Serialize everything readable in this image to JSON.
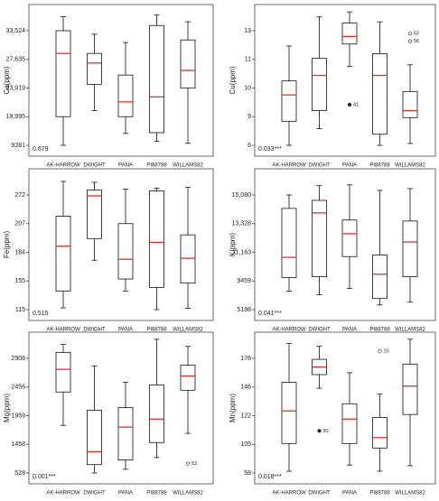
{
  "chart_data": [
    {
      "type": "box",
      "ylabel": "Ca(ppm)",
      "annotation": "0.679",
      "categories": [
        "AK-HARROW",
        "DWIGHT",
        "PANA",
        "PI88788",
        "WILLAMS82"
      ],
      "boxes": [
        {
          "min": 9281,
          "q1": 19995,
          "median": 28850,
          "q3": 33524,
          "max": 36300
        },
        {
          "min": 20830,
          "q1": 24400,
          "median": 27160,
          "q3": 28850,
          "max": 32800
        },
        {
          "min": 13715,
          "q1": 19995,
          "median": 22020,
          "q3": 25600,
          "max": 31100
        },
        {
          "min": 10760,
          "q1": 14020,
          "median": 22700,
          "q3": 34560,
          "max": 36700
        },
        {
          "min": 10020,
          "q1": 23919,
          "median": 26200,
          "q3": 31620,
          "max": 35300
        }
      ],
      "outliers": [],
      "ylim": [
        5357,
        38737
      ],
      "yticks": [
        9281,
        {
          "value": 19995,
          "label": "19,995"
        },
        {
          "value": 23919,
          "label": "23,919"
        },
        {
          "value": 27635,
          "label": "27,635"
        },
        {
          "value": 33524,
          "label": "33,524"
        }
      ]
    },
    {
      "type": "box",
      "ylabel": "Cu(ppm)",
      "annotation": "0.033***",
      "categories": [
        "AK-HARROW",
        "DWIGHT",
        "PANA",
        "PI88788",
        "WILLAMS82"
      ],
      "boxes": [
        {
          "min": 6,
          "q1": 8.52,
          "median": 9.76,
          "q3": 10.25,
          "max": 11.93
        },
        {
          "min": 7.74,
          "q1": 9.21,
          "median": 10.44,
          "q3": 11.07,
          "max": 13.93
        },
        {
          "min": 10.75,
          "q1": 12.07,
          "median": 12.6,
          "q3": 13.53,
          "max": 14.27
        },
        {
          "min": 6,
          "q1": 7.16,
          "median": 10.44,
          "q3": 11.4,
          "max": 13.6
        },
        {
          "min": 6.19,
          "q1": 8.9,
          "median": 9.21,
          "q3": 9.88,
          "max": 10.81
        }
      ],
      "outliers": [
        {
          "category": "PANA",
          "value": 9.42,
          "label": "41"
        },
        {
          "category": "WILLAMS82",
          "value": 12.8,
          "label": "52"
        },
        {
          "category": "WILLAMS82",
          "value": 12.27,
          "label": "56"
        }
      ],
      "ylim": [
        4.9,
        14.77
      ],
      "yticks": [
        6,
        9,
        10,
        11,
        13
      ]
    },
    {
      "type": "box",
      "ylabel": "Fe(ppm)",
      "annotation": "0.515",
      "categories": [
        "AK-HARROW",
        "DWIGHT",
        "PANA",
        "PI88788",
        "WILLAMS82"
      ],
      "boxes": [
        {
          "min": 117.5,
          "q1": 141,
          "median": 189,
          "q3": 224,
          "max": 302
        },
        {
          "min": 176,
          "q1": 195,
          "median": 270,
          "q3": 283,
          "max": 300
        },
        {
          "min": 141,
          "q1": 157,
          "median": 177,
          "q3": 207,
          "max": 285
        },
        {
          "min": 115,
          "q1": 146,
          "median": 192,
          "q3": 281,
          "max": 287
        },
        {
          "min": 117,
          "q1": 152,
          "median": 178,
          "q3": 198,
          "max": 289
        }
      ],
      "outliers": [],
      "ylim": [
        100,
        330
      ],
      "yticks": [
        115,
        155,
        184,
        207,
        272
      ]
    },
    {
      "type": "box",
      "ylabel": "K(ppm)",
      "annotation": "0.041***",
      "categories": [
        "AK-HARROW",
        "DWIGHT",
        "PANA",
        "PI88788",
        "WILLAMS82"
      ],
      "boxes": [
        {
          "min": 7947,
          "q1": 9660,
          "median": 10862,
          "q3": 14259,
          "max": 15080
        },
        {
          "min": 7400,
          "q1": 9710,
          "median": 13985,
          "q3": 14750,
          "max": 15630
        },
        {
          "min": 8360,
          "q1": 10910,
          "median": 12565,
          "q3": 13550,
          "max": 15680
        },
        {
          "min": 5890,
          "q1": 6850,
          "median": 9860,
          "q3": 11010,
          "max": 15350
        },
        {
          "min": 6300,
          "q1": 9710,
          "median": 11950,
          "q3": 13490,
          "max": 15460
        }
      ],
      "outliers": [],
      "ylim": [
        3638,
        16631
      ],
      "yticks": [
        5198,
        9459,
        {
          "value": 11163,
          "label": "11,163"
        },
        {
          "value": 13328,
          "label": "13,328"
        },
        {
          "value": 15080,
          "label": "15,080"
        }
      ]
    },
    {
      "type": "box",
      "ylabel": "Mg(ppm)",
      "annotation": "0.001***",
      "categories": [
        "AK-HARROW",
        "DWIGHT",
        "PANA",
        "PI88788",
        "WILLAMS82"
      ],
      "boxes": [
        {
          "min": 1790,
          "q1": 2370,
          "median": 2735,
          "q3": 3000,
          "max": 3120
        },
        {
          "min": 528,
          "q1": 800,
          "median": 1220,
          "q3": 2055,
          "max": 2790
        },
        {
          "min": 650,
          "q1": 950,
          "median": 1760,
          "q3": 2100,
          "max": 2530
        },
        {
          "min": 1030,
          "q1": 1490,
          "median": 1900,
          "q3": 2490,
          "max": 3200
        },
        {
          "min": 1650,
          "q1": 2400,
          "median": 2630,
          "q3": 2800,
          "max": 3090
        }
      ],
      "outliers": [
        {
          "category": "WILLAMS82",
          "value": 830,
          "label": "53"
        }
      ],
      "ylim": [
        188,
        3308
      ],
      "yticks": [
        528,
        1458,
        1959,
        2456,
        2908
      ]
    },
    {
      "type": "box",
      "ylabel": "Mn(ppm)",
      "annotation": "0.018***",
      "categories": [
        "AK-HARROW",
        "DWIGHT",
        "PANA",
        "PI88788",
        "WILLAMS82"
      ],
      "boxes": [
        {
          "min": 61,
          "q1": 105.5,
          "median": 126,
          "q3": 151,
          "max": 191
        },
        {
          "min": 145,
          "q1": 159,
          "median": 167,
          "q3": 175,
          "max": 188
        },
        {
          "min": 71,
          "q1": 105.5,
          "median": 120,
          "q3": 132,
          "max": 161
        },
        {
          "min": 61,
          "q1": 99,
          "median": 109,
          "q3": 121,
          "max": 140
        },
        {
          "min": 70,
          "q1": 123,
          "median": 147,
          "q3": 170,
          "max": 195
        }
      ],
      "outliers": [
        {
          "category": "DWIGHT",
          "value": 113,
          "label": "30"
        },
        {
          "category": "PI88788",
          "value": 183,
          "label": "15"
        }
      ],
      "ylim": [
        41,
        202
      ],
      "yticks": [
        58,
        105,
        122,
        146,
        176
      ]
    }
  ]
}
